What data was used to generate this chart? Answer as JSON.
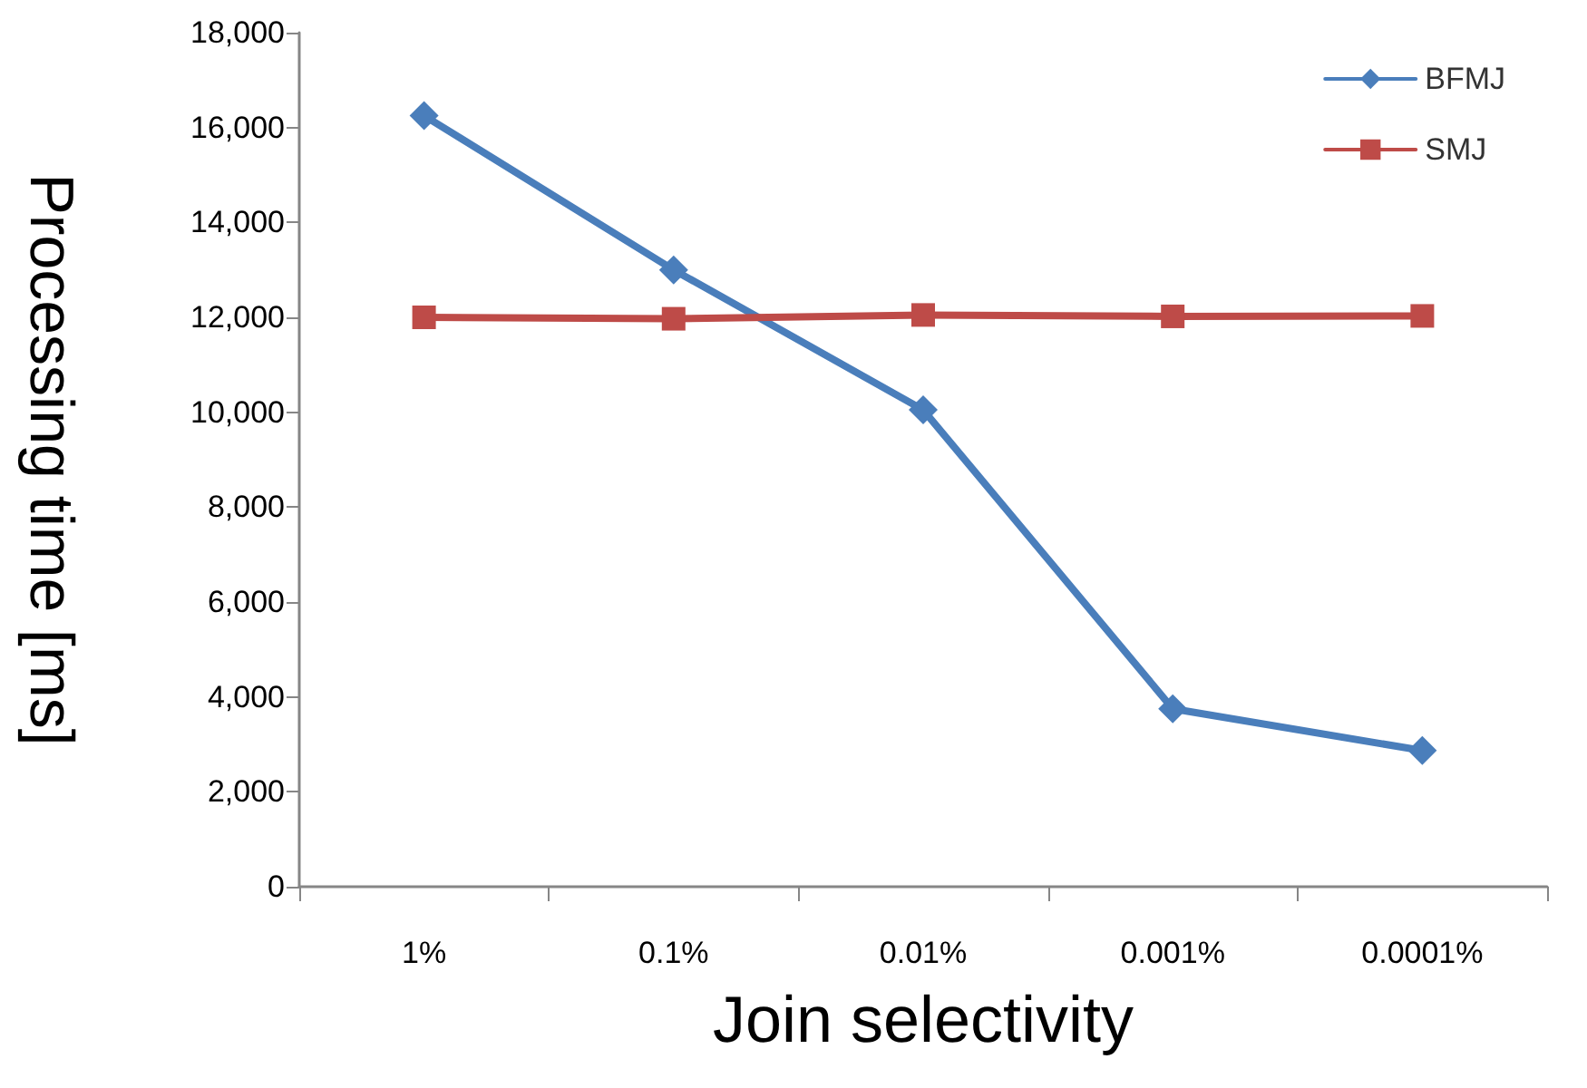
{
  "chart_data": {
    "type": "line",
    "xlabel": "Join selectivity",
    "ylabel": "Processing time [ms]",
    "categories": [
      "1%",
      "0.1%",
      "0.01%",
      "0.001%",
      "0.0001%"
    ],
    "series": [
      {
        "name": "BFMJ",
        "color": "#4a7ebb",
        "marker": "diamond",
        "values": [
          16250,
          13000,
          10050,
          3750,
          2870
        ]
      },
      {
        "name": "SMJ",
        "color": "#be4b48",
        "marker": "square",
        "values": [
          12000,
          11970,
          12050,
          12020,
          12030
        ]
      }
    ],
    "ylim": [
      0,
      18000
    ],
    "yticks": [
      {
        "value": 0,
        "label": "0"
      },
      {
        "value": 2000,
        "label": "2,000"
      },
      {
        "value": 4000,
        "label": "4,000"
      },
      {
        "value": 6000,
        "label": "6,000"
      },
      {
        "value": 8000,
        "label": "8,000"
      },
      {
        "value": 10000,
        "label": "10,000"
      },
      {
        "value": 12000,
        "label": "12,000"
      },
      {
        "value": 14000,
        "label": "14,000"
      },
      {
        "value": 16000,
        "label": "16,000"
      },
      {
        "value": 18000,
        "label": "18,000"
      }
    ],
    "grid": false,
    "legend": "top right",
    "line_style": "solid"
  }
}
